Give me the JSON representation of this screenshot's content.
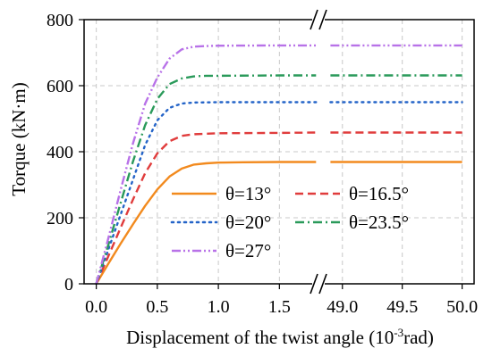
{
  "chart_data": {
    "type": "line",
    "title": "",
    "xlabel": "Displacement of the twist angle (10",
    "xlabel_sup": "-3",
    "xlabel_tail": "rad)",
    "ylabel": "Torque (kN·m)",
    "ylim": [
      0,
      800
    ],
    "yticks": [
      "0",
      "200",
      "400",
      "600",
      "800"
    ],
    "xaxis_segments": [
      {
        "range": [
          -0.1,
          1.82
        ],
        "ticks": [
          "0.0",
          "0.5",
          "1.0",
          "1.5"
        ],
        "tick_values": [
          0.0,
          0.5,
          1.0,
          1.5
        ]
      },
      {
        "range": [
          48.8,
          50.1
        ],
        "ticks": [
          "49.0",
          "49.5",
          "50.0"
        ],
        "tick_values": [
          49.0,
          49.5,
          50.0
        ]
      }
    ],
    "axis_break": true,
    "grid": true,
    "legend_position": "center-right",
    "series": [
      {
        "name": "θ=13°",
        "color": "#f28a1e",
        "dash": "solid",
        "x": [
          0.0,
          0.1,
          0.2,
          0.3,
          0.4,
          0.5,
          0.6,
          0.7,
          0.8,
          0.9,
          1.0,
          1.2,
          1.5,
          1.8,
          48.9,
          49.5,
          50.0
        ],
        "y": [
          0,
          62,
          122,
          180,
          236,
          286,
          325,
          349,
          361,
          365,
          367,
          368,
          369,
          369,
          369,
          369,
          369
        ]
      },
      {
        "name": "θ=16.5°",
        "color": "#e03c3c",
        "dash": "dashed",
        "x": [
          0.0,
          0.1,
          0.2,
          0.3,
          0.4,
          0.5,
          0.6,
          0.7,
          0.8,
          1.0,
          1.5,
          1.8,
          48.9,
          49.5,
          50.0
        ],
        "y": [
          0,
          85,
          170,
          255,
          335,
          395,
          432,
          448,
          453,
          456,
          457,
          458,
          458,
          458,
          458
        ]
      },
      {
        "name": "θ=20°",
        "color": "#2464c8",
        "dash": "dotted",
        "x": [
          0.0,
          0.1,
          0.2,
          0.3,
          0.4,
          0.5,
          0.6,
          0.7,
          0.8,
          1.0,
          1.5,
          1.8,
          48.9,
          49.5,
          50.0
        ],
        "y": [
          0,
          105,
          210,
          315,
          420,
          495,
          533,
          546,
          549,
          550,
          550,
          550,
          550,
          550,
          550
        ]
      },
      {
        "name": "θ=23.5°",
        "color": "#2a9a5a",
        "dash": "dashdot",
        "x": [
          0.0,
          0.1,
          0.2,
          0.3,
          0.4,
          0.5,
          0.6,
          0.7,
          0.8,
          0.9,
          1.0,
          1.5,
          1.8,
          48.9,
          49.5,
          50.0
        ],
        "y": [
          0,
          120,
          245,
          370,
          480,
          560,
          605,
          622,
          628,
          630,
          630,
          631,
          631,
          631,
          631,
          631
        ]
      },
      {
        "name": "θ=27°",
        "color": "#b872e8",
        "dash": "dashdotdot",
        "x": [
          0.0,
          0.1,
          0.2,
          0.3,
          0.4,
          0.5,
          0.6,
          0.7,
          0.8,
          0.9,
          1.0,
          1.5,
          1.8,
          48.9,
          49.5,
          50.0
        ],
        "y": [
          0,
          140,
          285,
          425,
          545,
          625,
          682,
          710,
          718,
          720,
          721,
          722,
          722,
          722,
          722,
          722
        ]
      }
    ]
  }
}
